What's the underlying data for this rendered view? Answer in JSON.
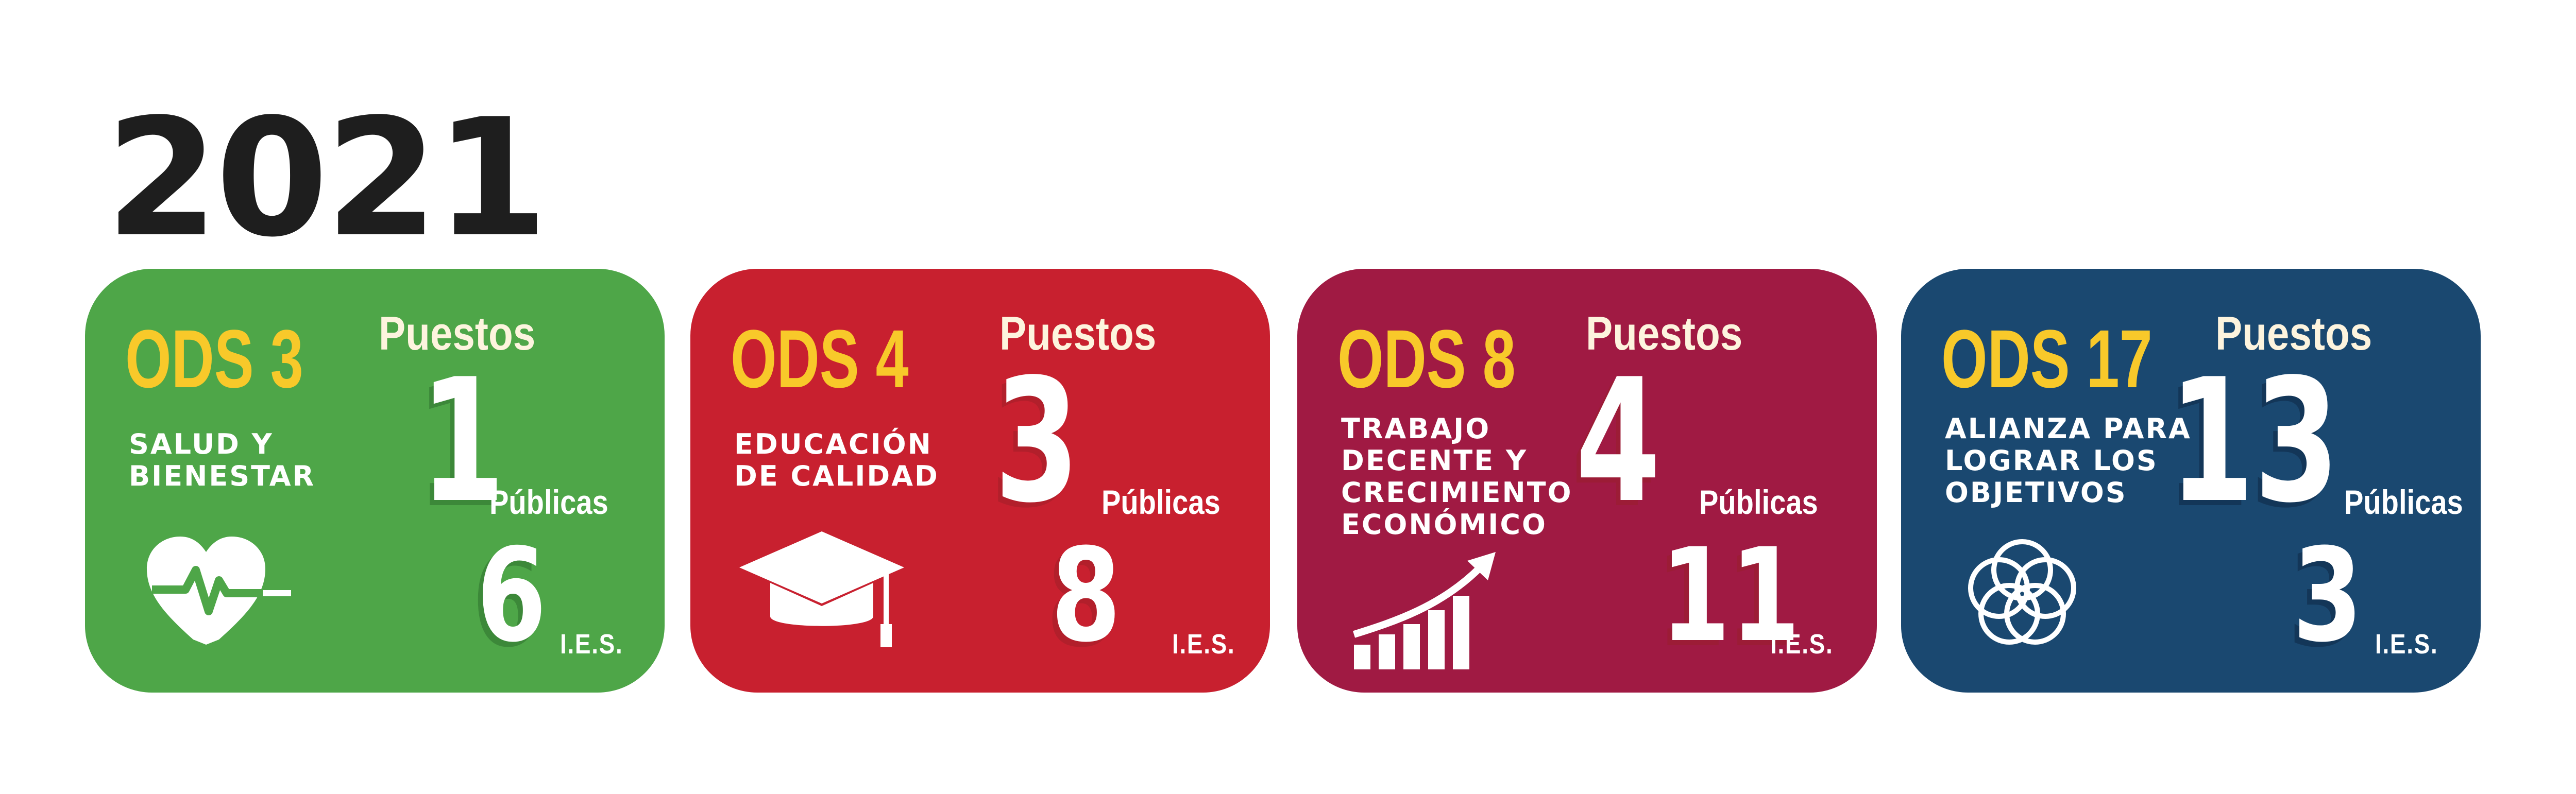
{
  "year": "2021",
  "colors": {
    "ods3": "#4ea648",
    "ods4": "#c8202f",
    "ods8": "#a01a43",
    "ods17": "#1a4870",
    "ods_label": "#f8c92a",
    "year_text": "#1e1e1e"
  },
  "cards": [
    {
      "ods": "ODS 3",
      "title_line1": "SALUD Y",
      "title_line2": "BIENESTAR",
      "title_line3": "",
      "title_line4": "",
      "puestos_label": "Puestos",
      "publicas_value": "1",
      "publicas_label": "Públicas",
      "ies_value": "6",
      "ies_label": "I.E.S.",
      "icon": "heart-pulse-icon"
    },
    {
      "ods": "ODS 4",
      "title_line1": "EDUCACIÓN",
      "title_line2": "DE CALIDAD",
      "title_line3": "",
      "title_line4": "",
      "puestos_label": "Puestos",
      "publicas_value": "3",
      "publicas_label": "Públicas",
      "ies_value": "8",
      "ies_label": "I.E.S.",
      "icon": "graduation-cap-icon"
    },
    {
      "ods": "ODS 8",
      "title_line1": "TRABAJO",
      "title_line2": "DECENTE Y",
      "title_line3": "CRECIMIENTO",
      "title_line4": "ECONÓMICO",
      "puestos_label": "Puestos",
      "publicas_value": "4",
      "publicas_label": "Públicas",
      "ies_value": "11",
      "ies_label": "I.E.S.",
      "icon": "growth-chart-icon"
    },
    {
      "ods": "ODS 17",
      "title_line1": "ALIANZA PARA",
      "title_line2": "LOGRAR LOS",
      "title_line3": "OBJETIVOS",
      "title_line4": "",
      "puestos_label": "Puestos",
      "publicas_value": "13",
      "publicas_label": "Públicas",
      "ies_value": "3",
      "ies_label": "I.E.S.",
      "icon": "interlocking-circles-icon"
    }
  ]
}
